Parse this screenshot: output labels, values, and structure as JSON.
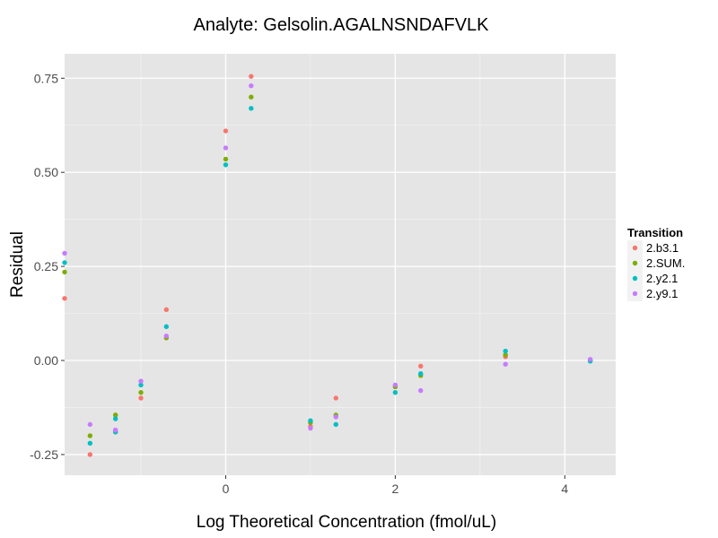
{
  "chart_data": {
    "type": "scatter",
    "title": "Analyte: Gelsolin.AGALNSNDAFVLK",
    "xlabel": "Log Theoretical Concentration (fmol/uL)",
    "ylabel": "Residual",
    "xlim": [
      -1.9,
      4.6
    ],
    "ylim": [
      -0.305,
      0.815
    ],
    "x_ticks": [
      0,
      2,
      4
    ],
    "x_tick_labels": [
      "0",
      "2",
      "4"
    ],
    "y_ticks": [
      -0.25,
      0,
      0.25,
      0.5,
      0.75
    ],
    "y_tick_labels": [
      "-0.25",
      "0.00",
      "0.25",
      "0.50",
      "0.75"
    ],
    "grid": true,
    "legend": {
      "title": "Transition",
      "placement": "right"
    },
    "series": [
      {
        "name": "2.b3.1",
        "color": "#F8766D",
        "x": [
          -1.9,
          -1.6,
          -1.3,
          -1.3,
          -1.0,
          -0.7,
          0.0,
          0.3,
          1.0,
          1.3,
          2.0,
          2.3,
          3.3,
          4.3
        ],
        "y": [
          0.165,
          -0.25,
          -0.145,
          -0.19,
          -0.1,
          0.135,
          0.61,
          0.755,
          -0.175,
          -0.1,
          -0.07,
          -0.015,
          0.01,
          0.0
        ]
      },
      {
        "name": "2.SUM.",
        "color": "#7CAE00",
        "x": [
          -1.9,
          -1.6,
          -1.3,
          -1.3,
          -1.0,
          -0.7,
          0.0,
          0.3,
          1.0,
          1.3,
          2.0,
          2.3,
          3.3,
          4.3
        ],
        "y": [
          0.235,
          -0.2,
          -0.145,
          -0.19,
          -0.085,
          0.06,
          0.535,
          0.7,
          -0.165,
          -0.145,
          -0.07,
          -0.04,
          0.015,
          0.0
        ]
      },
      {
        "name": "2.y2.1",
        "color": "#00BFC4",
        "x": [
          -1.9,
          -1.6,
          -1.3,
          -1.3,
          -1.0,
          -0.7,
          0.0,
          0.3,
          1.0,
          1.3,
          2.0,
          2.3,
          3.3,
          4.3
        ],
        "y": [
          0.26,
          -0.22,
          -0.155,
          -0.19,
          -0.065,
          0.09,
          0.52,
          0.67,
          -0.16,
          -0.17,
          -0.085,
          -0.035,
          0.025,
          -0.002
        ]
      },
      {
        "name": "2.y9.1",
        "color": "#C77CFF",
        "x": [
          -1.9,
          -1.6,
          -1.3,
          -1.3,
          -1.0,
          -0.7,
          0.0,
          0.3,
          1.0,
          1.3,
          2.0,
          2.3,
          3.3,
          4.3
        ],
        "y": [
          0.285,
          -0.17,
          -0.185,
          -0.185,
          -0.055,
          0.065,
          0.565,
          0.73,
          -0.18,
          -0.15,
          -0.065,
          -0.08,
          -0.01,
          0.003
        ]
      }
    ]
  }
}
